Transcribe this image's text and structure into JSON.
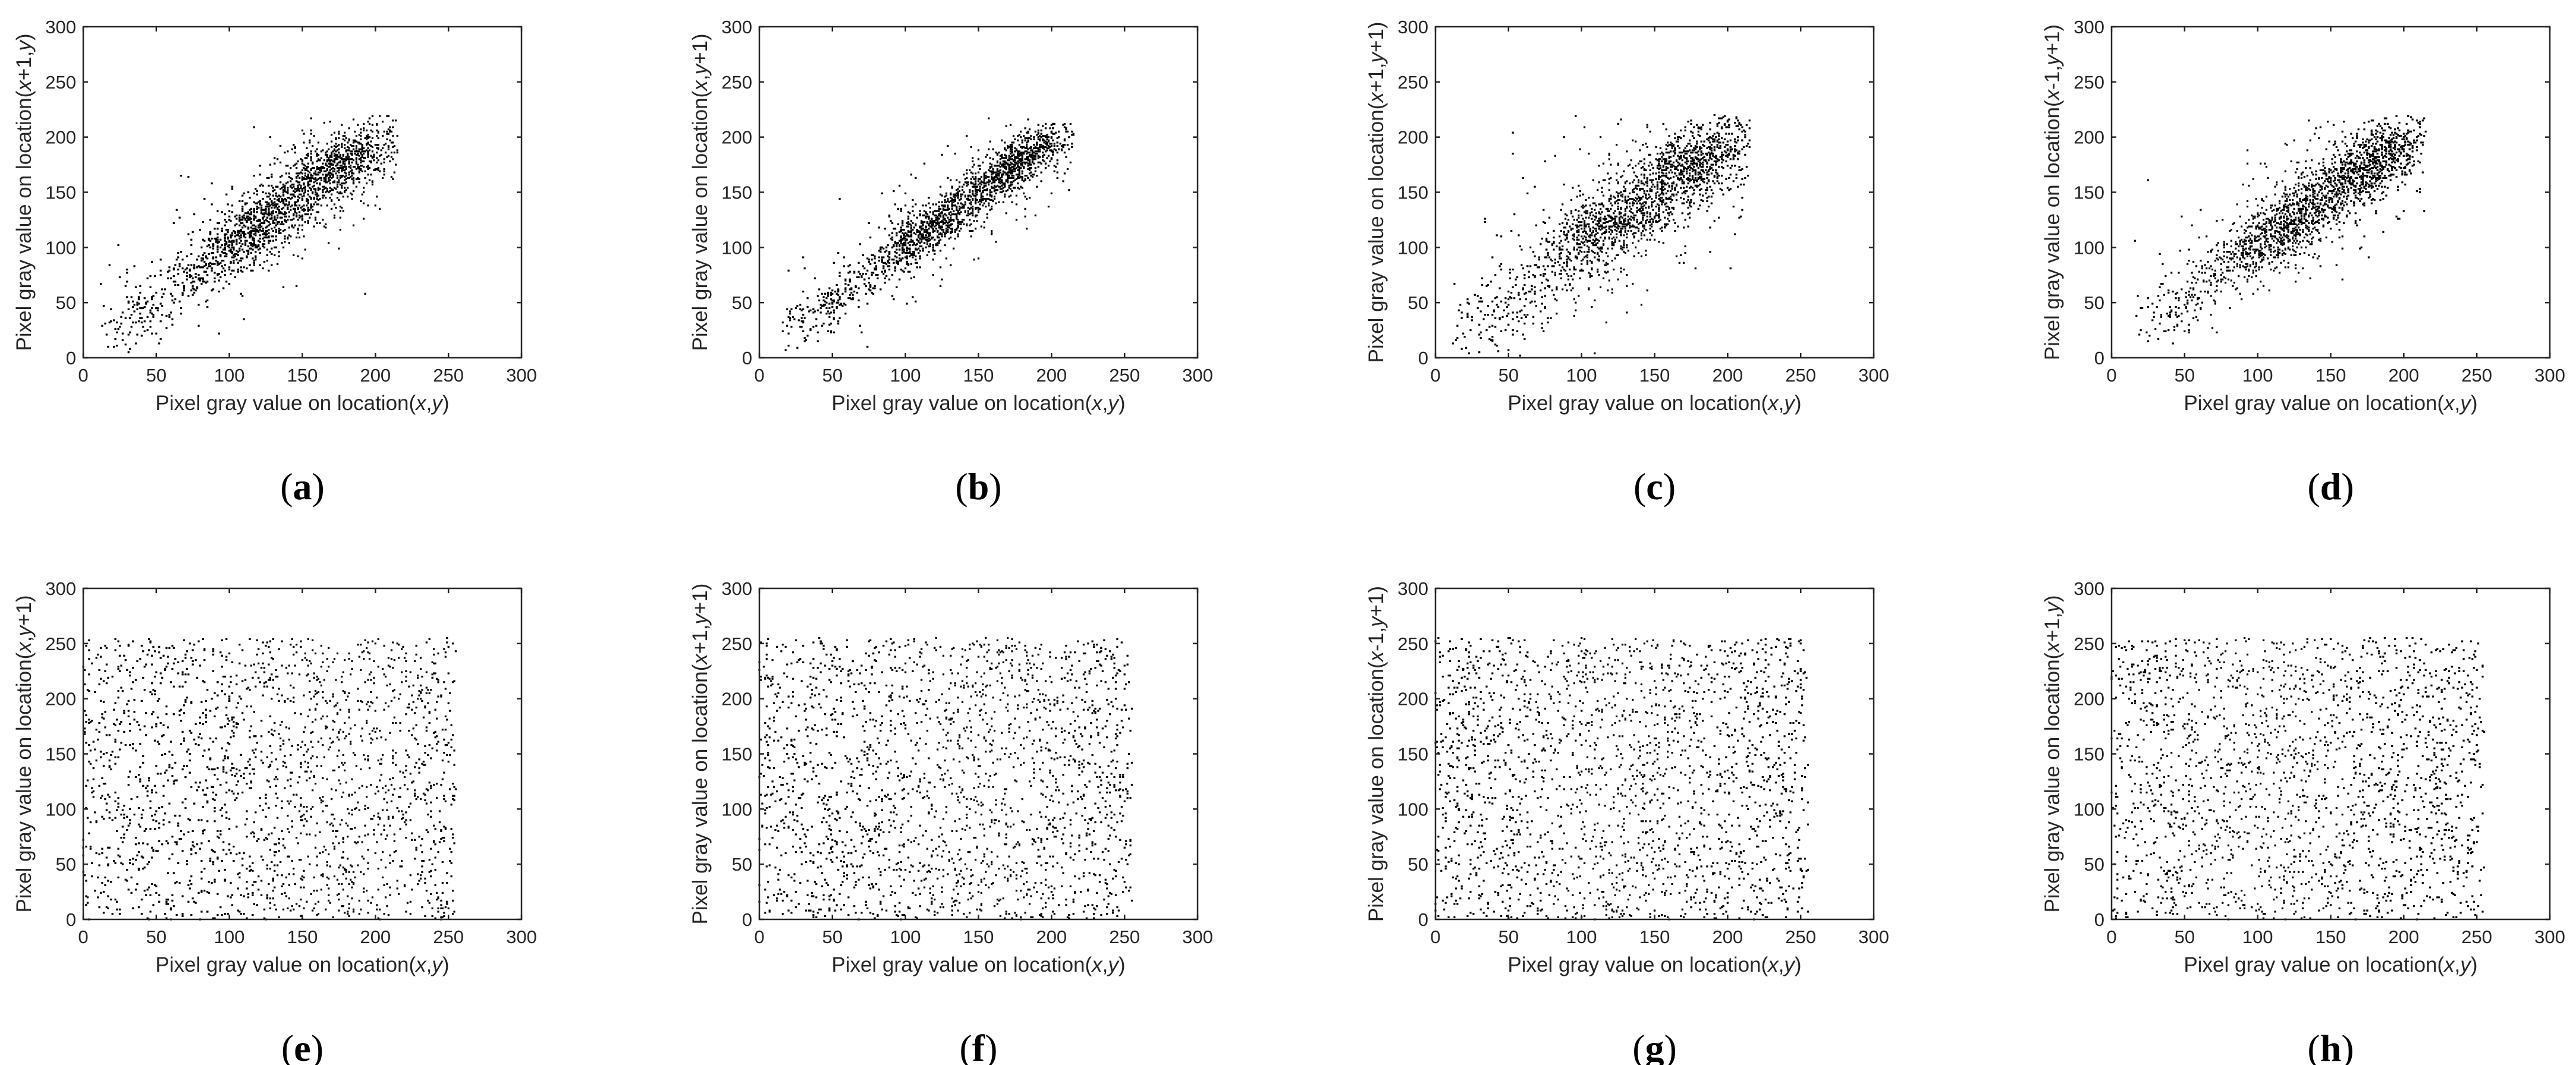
{
  "chart_data": [
    {
      "type": "scatter",
      "panel": "a",
      "xlabel": [
        "Pixel gray value on location(",
        "x",
        ",",
        "y",
        ")"
      ],
      "ylabel": [
        "Pixel gray value on location(",
        "x",
        "+1,",
        "y",
        ")"
      ],
      "xlim": [
        0,
        300
      ],
      "ylim": [
        0,
        300
      ],
      "xticks": [
        0,
        50,
        100,
        150,
        200,
        250,
        300
      ],
      "yticks": [
        0,
        50,
        100,
        150,
        200,
        250,
        300
      ],
      "distribution": "correlated",
      "point_count": 2000,
      "sample_points": [
        [
          25,
          28
        ],
        [
          50,
          45
        ],
        [
          80,
          82
        ],
        [
          100,
          100
        ],
        [
          120,
          118
        ],
        [
          140,
          145
        ],
        [
          160,
          158
        ],
        [
          180,
          182
        ],
        [
          195,
          195
        ],
        [
          210,
          205
        ]
      ],
      "value_range": [
        10,
        215
      ],
      "spread_sd": 17
    },
    {
      "type": "scatter",
      "panel": "b",
      "xlabel": [
        "Pixel gray value on location(",
        "x",
        ",",
        "y",
        ")"
      ],
      "ylabel": [
        "Pixel gray value on location(",
        "x",
        ",",
        "y",
        "+1)"
      ],
      "xlim": [
        0,
        300
      ],
      "ylim": [
        0,
        300
      ],
      "xticks": [
        0,
        50,
        100,
        150,
        200,
        250,
        300
      ],
      "yticks": [
        0,
        50,
        100,
        150,
        200,
        250,
        300
      ],
      "distribution": "correlated",
      "point_count": 2000,
      "sample_points": [
        [
          20,
          22
        ],
        [
          50,
          50
        ],
        [
          80,
          80
        ],
        [
          110,
          112
        ],
        [
          130,
          130
        ],
        [
          150,
          152
        ],
        [
          170,
          168
        ],
        [
          190,
          190
        ],
        [
          205,
          200
        ]
      ],
      "value_range": [
        15,
        215
      ],
      "spread_sd": 12
    },
    {
      "type": "scatter",
      "panel": "c",
      "xlabel": [
        "Pixel gray value on location(",
        "x",
        ",",
        "y",
        ")"
      ],
      "ylabel": [
        "Pixel gray value on location(",
        "x",
        "+1,",
        "y",
        "+1)"
      ],
      "xlim": [
        0,
        300
      ],
      "ylim": [
        0,
        300
      ],
      "xticks": [
        0,
        50,
        100,
        150,
        200,
        250,
        300
      ],
      "yticks": [
        0,
        50,
        100,
        150,
        200,
        250,
        300
      ],
      "distribution": "correlated",
      "point_count": 2000,
      "sample_points": [
        [
          15,
          18
        ],
        [
          50,
          48
        ],
        [
          90,
          92
        ],
        [
          110,
          108
        ],
        [
          130,
          130
        ],
        [
          160,
          162
        ],
        [
          180,
          178
        ],
        [
          195,
          195
        ],
        [
          210,
          205
        ]
      ],
      "value_range": [
        10,
        215
      ],
      "spread_sd": 21
    },
    {
      "type": "scatter",
      "panel": "d",
      "xlabel": [
        "Pixel gray value on location(",
        "x",
        ",",
        "y",
        ")"
      ],
      "ylabel": [
        "Pixel gray value on location(",
        "x",
        "-1,",
        "y",
        "+1)"
      ],
      "xlim": [
        0,
        300
      ],
      "ylim": [
        0,
        300
      ],
      "xticks": [
        0,
        50,
        100,
        150,
        200,
        250,
        300
      ],
      "yticks": [
        0,
        50,
        100,
        150,
        200,
        250,
        300
      ],
      "distribution": "correlated",
      "point_count": 2000,
      "sample_points": [
        [
          20,
          25
        ],
        [
          50,
          48
        ],
        [
          90,
          95
        ],
        [
          110,
          110
        ],
        [
          130,
          128
        ],
        [
          160,
          160
        ],
        [
          180,
          182
        ],
        [
          200,
          198
        ],
        [
          215,
          205
        ]
      ],
      "value_range": [
        15,
        215
      ],
      "spread_sd": 18
    },
    {
      "type": "scatter",
      "panel": "e",
      "xlabel": [
        "Pixel gray value on location(",
        "x",
        ",",
        "y",
        ")"
      ],
      "ylabel": [
        "Pixel gray value on location(",
        "x",
        ",",
        "y",
        "+1)"
      ],
      "xlim": [
        0,
        300
      ],
      "ylim": [
        0,
        300
      ],
      "xticks": [
        0,
        50,
        100,
        150,
        200,
        250,
        300
      ],
      "yticks": [
        0,
        50,
        100,
        150,
        200,
        250,
        300
      ],
      "distribution": "uniform",
      "point_count": 2000,
      "sample_points": [
        [
          10,
          240
        ],
        [
          50,
          30
        ],
        [
          100,
          180
        ],
        [
          150,
          90
        ],
        [
          200,
          250
        ],
        [
          250,
          10
        ]
      ],
      "value_range": [
        0,
        255
      ]
    },
    {
      "type": "scatter",
      "panel": "f",
      "xlabel": [
        "Pixel gray value on location(",
        "x",
        ",",
        "y",
        ")"
      ],
      "ylabel": [
        "Pixel gray value on location(",
        "x",
        "+1,",
        "y",
        "+1)"
      ],
      "xlim": [
        0,
        300
      ],
      "ylim": [
        0,
        300
      ],
      "xticks": [
        0,
        50,
        100,
        150,
        200,
        250,
        300
      ],
      "yticks": [
        0,
        50,
        100,
        150,
        200,
        250,
        300
      ],
      "distribution": "uniform",
      "point_count": 2000,
      "sample_points": [
        [
          5,
          250
        ],
        [
          60,
          40
        ],
        [
          110,
          200
        ],
        [
          160,
          120
        ],
        [
          210,
          60
        ],
        [
          250,
          230
        ]
      ],
      "value_range": [
        0,
        255
      ]
    },
    {
      "type": "scatter",
      "panel": "g",
      "xlabel": [
        "Pixel gray value on location(",
        "x",
        ",",
        "y",
        ")"
      ],
      "ylabel": [
        "Pixel gray value on location(",
        "x",
        "-1,",
        "y",
        "+1)"
      ],
      "xlim": [
        0,
        300
      ],
      "ylim": [
        0,
        300
      ],
      "xticks": [
        0,
        50,
        100,
        150,
        200,
        250,
        300
      ],
      "yticks": [
        0,
        50,
        100,
        150,
        200,
        250,
        300
      ],
      "distribution": "uniform",
      "point_count": 2000,
      "sample_points": [
        [
          8,
          20
        ],
        [
          70,
          230
        ],
        [
          120,
          100
        ],
        [
          170,
          250
        ],
        [
          220,
          50
        ],
        [
          255,
          140
        ]
      ],
      "value_range": [
        0,
        255
      ]
    },
    {
      "type": "scatter",
      "panel": "h",
      "xlabel": [
        "Pixel gray value on location(",
        "x",
        ",",
        "y",
        ")"
      ],
      "ylabel": [
        "Pixel gray value on location(",
        "x",
        "+1,",
        "y",
        ")"
      ],
      "xlim": [
        0,
        300
      ],
      "ylim": [
        0,
        300
      ],
      "xticks": [
        0,
        50,
        100,
        150,
        200,
        250,
        300
      ],
      "yticks": [
        0,
        50,
        100,
        150,
        200,
        250,
        300
      ],
      "distribution": "uniform",
      "point_count": 2000,
      "sample_points": [
        [
          12,
          200
        ],
        [
          60,
          15
        ],
        [
          115,
          245
        ],
        [
          165,
          70
        ],
        [
          215,
          160
        ],
        [
          252,
          35
        ]
      ],
      "value_range": [
        0,
        255
      ]
    }
  ]
}
